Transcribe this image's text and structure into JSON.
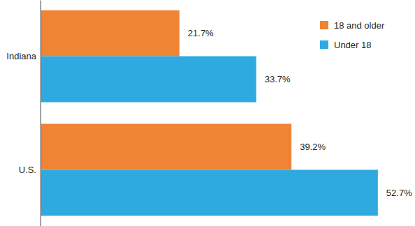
{
  "chart_data": {
    "type": "bar",
    "orientation": "horizontal",
    "categories": [
      "Indiana",
      "U.S."
    ],
    "series": [
      {
        "name": "18 and older",
        "color": "#ee8434",
        "values": [
          21.7,
          39.2
        ],
        "value_labels": [
          "21.7%",
          "39.2%"
        ]
      },
      {
        "name": "Under 18",
        "color": "#2eaae1",
        "values": [
          33.7,
          52.7
        ],
        "value_labels": [
          "33.7%",
          "52.7%"
        ]
      }
    ],
    "xlim": [
      0,
      58.5
    ],
    "data_labels": true,
    "legend": "top-right",
    "tick_labels": "y"
  }
}
